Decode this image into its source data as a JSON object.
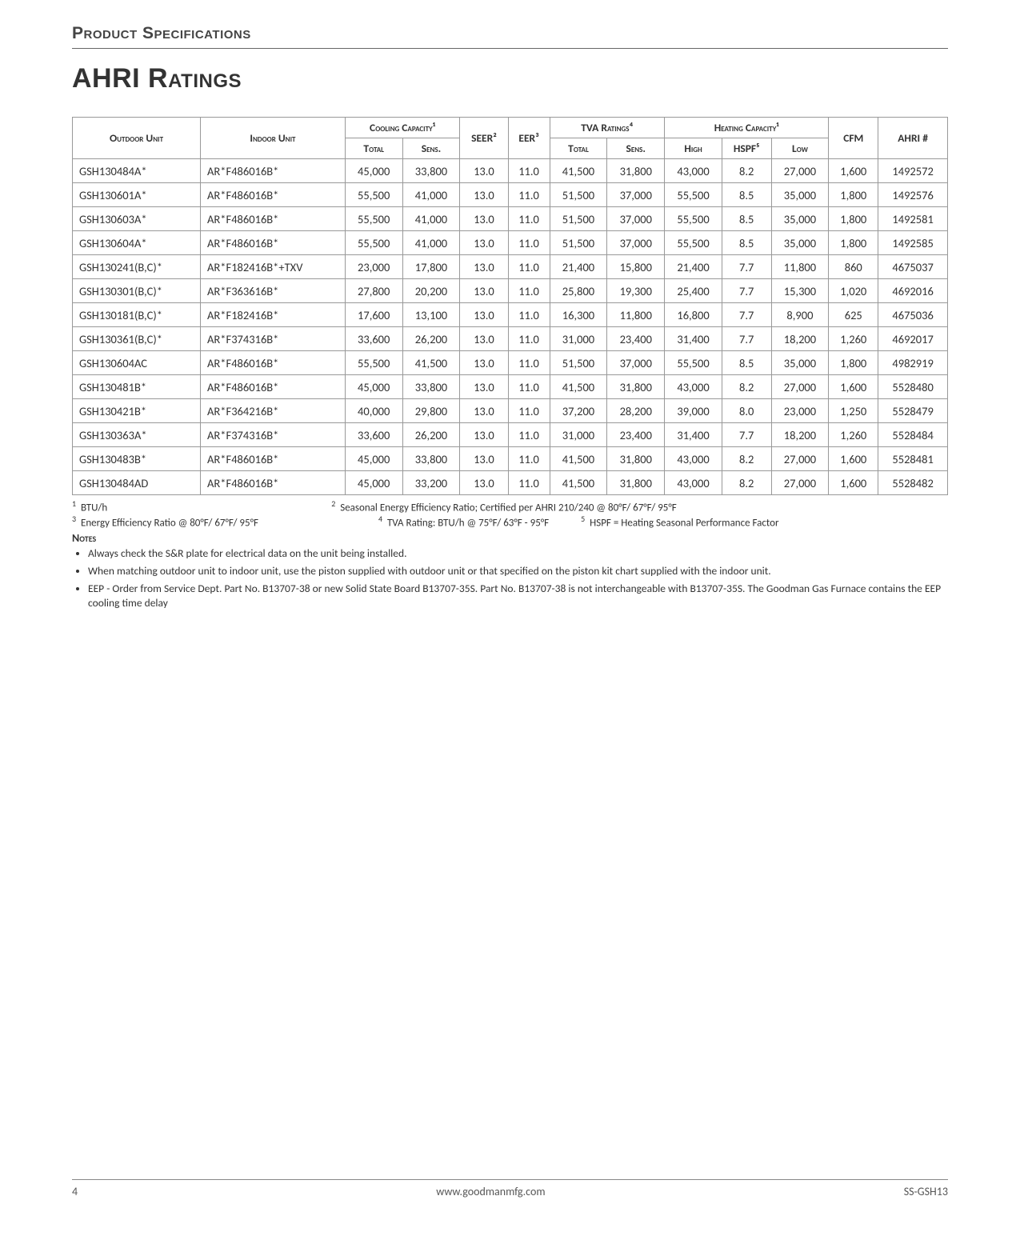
{
  "header": {
    "section": "Product Specifications",
    "title": "AHRI Ratings"
  },
  "table": {
    "columns": {
      "outdoor": "Outdoor Unit",
      "indoor": "Indoor Unit",
      "cooling_group": "Cooling Capacity¹",
      "cooling_total": "Total",
      "cooling_sens": "Sens.",
      "seer": "SEER²",
      "eer": "EER³",
      "tva_group": "TVA Ratings⁴",
      "tva_total": "Total",
      "tva_sens": "Sens.",
      "heating_group": "Heating Capacity¹",
      "heating_high": "High",
      "heating_hspf": "HSPF⁵",
      "heating_low": "Low",
      "cfm": "CFM",
      "ahri": "AHRI #"
    },
    "rows": [
      {
        "outdoor": "GSH130484A*",
        "indoor": "AR*F486016B*",
        "ct": "45,000",
        "cs": "33,800",
        "seer": "13.0",
        "eer": "11.0",
        "tt": "41,500",
        "ts": "31,800",
        "hh": "43,000",
        "hspf": "8.2",
        "hl": "27,000",
        "cfm": "1,600",
        "ahri": "1492572"
      },
      {
        "outdoor": "GSH130601A*",
        "indoor": "AR*F486016B*",
        "ct": "55,500",
        "cs": "41,000",
        "seer": "13.0",
        "eer": "11.0",
        "tt": "51,500",
        "ts": "37,000",
        "hh": "55,500",
        "hspf": "8.5",
        "hl": "35,000",
        "cfm": "1,800",
        "ahri": "1492576"
      },
      {
        "outdoor": "GSH130603A*",
        "indoor": "AR*F486016B*",
        "ct": "55,500",
        "cs": "41,000",
        "seer": "13.0",
        "eer": "11.0",
        "tt": "51,500",
        "ts": "37,000",
        "hh": "55,500",
        "hspf": "8.5",
        "hl": "35,000",
        "cfm": "1,800",
        "ahri": "1492581"
      },
      {
        "outdoor": "GSH130604A*",
        "indoor": "AR*F486016B*",
        "ct": "55,500",
        "cs": "41,000",
        "seer": "13.0",
        "eer": "11.0",
        "tt": "51,500",
        "ts": "37,000",
        "hh": "55,500",
        "hspf": "8.5",
        "hl": "35,000",
        "cfm": "1,800",
        "ahri": "1492585"
      },
      {
        "outdoor": "GSH130241(B,C)*",
        "indoor": "AR*F182416B*+TXV",
        "ct": "23,000",
        "cs": "17,800",
        "seer": "13.0",
        "eer": "11.0",
        "tt": "21,400",
        "ts": "15,800",
        "hh": "21,400",
        "hspf": "7.7",
        "hl": "11,800",
        "cfm": "860",
        "ahri": "4675037"
      },
      {
        "outdoor": "GSH130301(B,C)*",
        "indoor": "AR*F363616B*",
        "ct": "27,800",
        "cs": "20,200",
        "seer": "13.0",
        "eer": "11.0",
        "tt": "25,800",
        "ts": "19,300",
        "hh": "25,400",
        "hspf": "7.7",
        "hl": "15,300",
        "cfm": "1,020",
        "ahri": "4692016"
      },
      {
        "outdoor": "GSH130181(B,C)*",
        "indoor": "AR*F182416B*",
        "ct": "17,600",
        "cs": "13,100",
        "seer": "13.0",
        "eer": "11.0",
        "tt": "16,300",
        "ts": "11,800",
        "hh": "16,800",
        "hspf": "7.7",
        "hl": "8,900",
        "cfm": "625",
        "ahri": "4675036"
      },
      {
        "outdoor": "GSH130361(B,C)*",
        "indoor": "AR*F374316B*",
        "ct": "33,600",
        "cs": "26,200",
        "seer": "13.0",
        "eer": "11.0",
        "tt": "31,000",
        "ts": "23,400",
        "hh": "31,400",
        "hspf": "7.7",
        "hl": "18,200",
        "cfm": "1,260",
        "ahri": "4692017"
      },
      {
        "outdoor": "GSH130604AC",
        "indoor": "AR*F486016B*",
        "ct": "55,500",
        "cs": "41,500",
        "seer": "13.0",
        "eer": "11.0",
        "tt": "51,500",
        "ts": "37,000",
        "hh": "55,500",
        "hspf": "8.5",
        "hl": "35,000",
        "cfm": "1,800",
        "ahri": "4982919"
      },
      {
        "outdoor": "GSH130481B*",
        "indoor": "AR*F486016B*",
        "ct": "45,000",
        "cs": "33,800",
        "seer": "13.0",
        "eer": "11.0",
        "tt": "41,500",
        "ts": "31,800",
        "hh": "43,000",
        "hspf": "8.2",
        "hl": "27,000",
        "cfm": "1,600",
        "ahri": "5528480"
      },
      {
        "outdoor": "GSH130421B*",
        "indoor": "AR*F364216B*",
        "ct": "40,000",
        "cs": "29,800",
        "seer": "13.0",
        "eer": "11.0",
        "tt": "37,200",
        "ts": "28,200",
        "hh": "39,000",
        "hspf": "8.0",
        "hl": "23,000",
        "cfm": "1,250",
        "ahri": "5528479"
      },
      {
        "outdoor": "GSH130363A*",
        "indoor": "AR*F374316B*",
        "ct": "33,600",
        "cs": "26,200",
        "seer": "13.0",
        "eer": "11.0",
        "tt": "31,000",
        "ts": "23,400",
        "hh": "31,400",
        "hspf": "7.7",
        "hl": "18,200",
        "cfm": "1,260",
        "ahri": "5528484"
      },
      {
        "outdoor": "GSH130483B*",
        "indoor": "AR*F486016B*",
        "ct": "45,000",
        "cs": "33,800",
        "seer": "13.0",
        "eer": "11.0",
        "tt": "41,500",
        "ts": "31,800",
        "hh": "43,000",
        "hspf": "8.2",
        "hl": "27,000",
        "cfm": "1,600",
        "ahri": "5528481"
      },
      {
        "outdoor": "GSH130484AD",
        "indoor": "AR*F486016B*",
        "ct": "45,000",
        "cs": "33,200",
        "seer": "13.0",
        "eer": "11.0",
        "tt": "41,500",
        "ts": "31,800",
        "hh": "43,000",
        "hspf": "8.2",
        "hl": "27,000",
        "cfm": "1,600",
        "ahri": "5528482"
      }
    ]
  },
  "footnotes": {
    "f1": "BTU/h",
    "f2": "Seasonal Energy Efficiency Ratio; Certified per AHRI 210/240 @ 80°F/ 67°F/ 95°F",
    "f3": "Energy Efficiency Ratio @ 80°F/ 67°F/ 95°F",
    "f4": "TVA Rating: BTU/h @ 75°F/ 63°F - 95°F",
    "f5": "HSPF = Heating Seasonal Performance Factor"
  },
  "notes": {
    "label": "Notes",
    "items": [
      "Always check the S&R plate for electrical data on the unit being installed.",
      "When matching outdoor unit to indoor unit, use the piston supplied with outdoor unit or that specified on the piston kit chart supplied with the indoor unit.",
      "EEP - Order from Service Dept. Part No. B13707-38 or new Solid State Board B13707-35S. Part No. B13707-38 is not interchangeable with B13707-35S. The Goodman Gas Furnace contains the EEP cooling time delay"
    ]
  },
  "footer": {
    "page": "4",
    "url": "www.goodmanmfg.com",
    "doc": "SS-GSH13"
  }
}
